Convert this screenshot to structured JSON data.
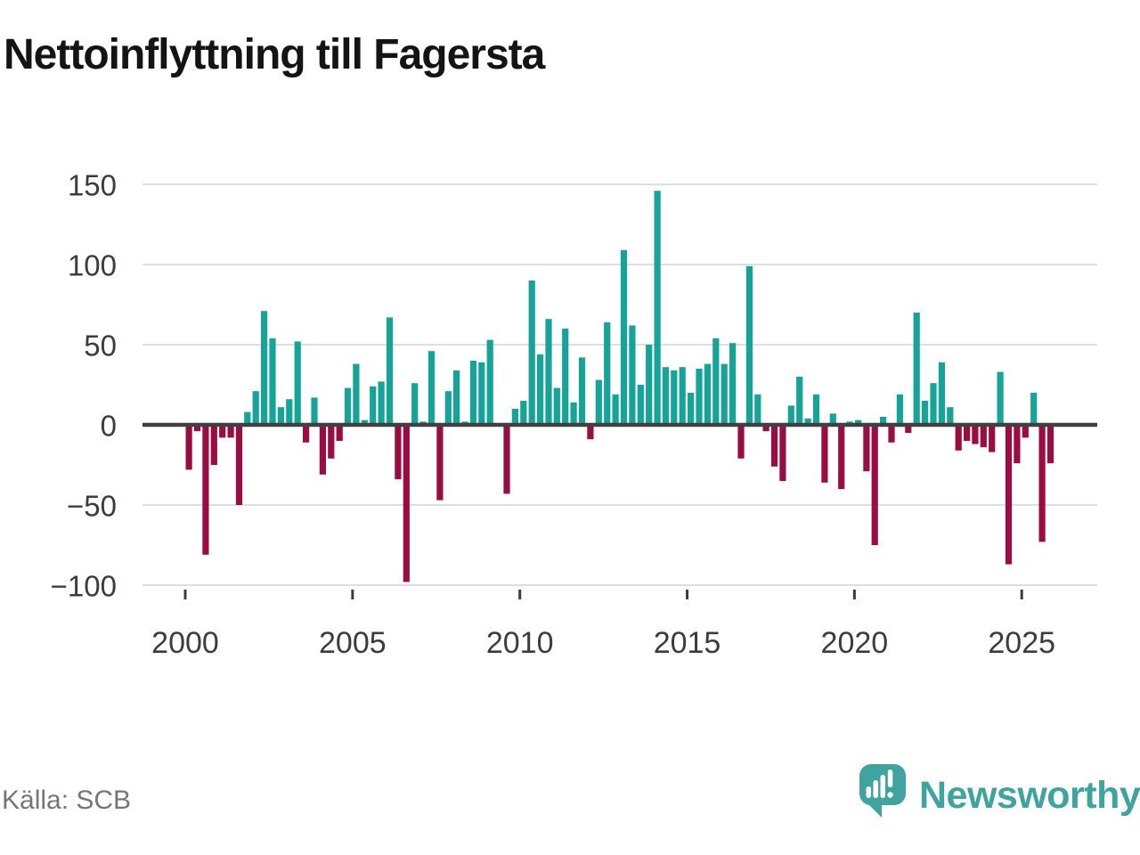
{
  "page": {
    "title": "Nettoinflyttning till Fagersta"
  },
  "chart_data": {
    "type": "bar",
    "title": "Nettoinflyttning till Fagersta",
    "xlabel": "",
    "ylabel": "",
    "frequency": "quarterly",
    "x_tick_labels": [
      "2000",
      "2005",
      "2010",
      "2015",
      "2020",
      "2025"
    ],
    "y_tick_values": [
      150,
      100,
      50,
      0,
      -50,
      -100
    ],
    "ylim": [
      -110,
      160
    ],
    "grid": true,
    "legend": false,
    "years": [
      {
        "year": 2000,
        "q": [
          -28,
          -4,
          -81,
          -25
        ]
      },
      {
        "year": 2001,
        "q": [
          -8,
          -8,
          -50,
          8
        ]
      },
      {
        "year": 2002,
        "q": [
          21,
          71,
          54,
          11
        ]
      },
      {
        "year": 2003,
        "q": [
          16,
          52,
          -11,
          17
        ]
      },
      {
        "year": 2004,
        "q": [
          -31,
          -21,
          -10,
          23
        ]
      },
      {
        "year": 2005,
        "q": [
          38,
          3,
          24,
          27
        ]
      },
      {
        "year": 2006,
        "q": [
          67,
          -34,
          -98,
          26
        ]
      },
      {
        "year": 2007,
        "q": [
          2,
          46,
          -47,
          21
        ]
      },
      {
        "year": 2008,
        "q": [
          34,
          2,
          40,
          39
        ]
      },
      {
        "year": 2009,
        "q": [
          53,
          0,
          -43,
          10
        ]
      },
      {
        "year": 2010,
        "q": [
          15,
          90,
          44,
          66
        ]
      },
      {
        "year": 2011,
        "q": [
          23,
          60,
          14,
          42
        ]
      },
      {
        "year": 2012,
        "q": [
          -9,
          28,
          64,
          19
        ]
      },
      {
        "year": 2013,
        "q": [
          109,
          62,
          25,
          50
        ]
      },
      {
        "year": 2014,
        "q": [
          146,
          36,
          34,
          36
        ]
      },
      {
        "year": 2015,
        "q": [
          20,
          35,
          38,
          54
        ]
      },
      {
        "year": 2016,
        "q": [
          38,
          51,
          -21,
          99
        ]
      },
      {
        "year": 2017,
        "q": [
          19,
          -4,
          -26,
          -35
        ]
      },
      {
        "year": 2018,
        "q": [
          12,
          30,
          4,
          19
        ]
      },
      {
        "year": 2019,
        "q": [
          -36,
          7,
          -40,
          2
        ]
      },
      {
        "year": 2020,
        "q": [
          3,
          -29,
          -75,
          5
        ]
      },
      {
        "year": 2021,
        "q": [
          -11,
          19,
          -5,
          70
        ]
      },
      {
        "year": 2022,
        "q": [
          15,
          26,
          39,
          11
        ]
      },
      {
        "year": 2023,
        "q": [
          -16,
          -10,
          -12,
          -14
        ]
      },
      {
        "year": 2024,
        "q": [
          -17,
          33,
          -87,
          -24
        ]
      },
      {
        "year": 2025,
        "q": [
          -8,
          20,
          -73,
          -24
        ]
      }
    ],
    "colors": {
      "positive": "#16A398",
      "negative": "#9B0C42",
      "grid": "#DEDEDE",
      "zero_line": "#404040",
      "axis_text": "#3C3C3C"
    }
  },
  "footer": {
    "source": "Källa: SCB",
    "brand": "Newsworthy",
    "brand_color": "#3FA49E"
  }
}
